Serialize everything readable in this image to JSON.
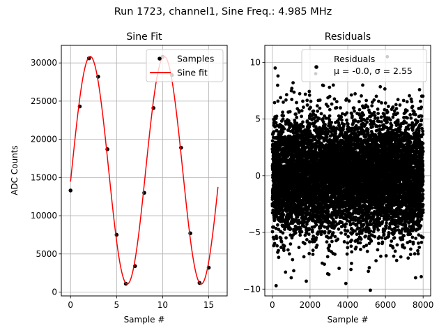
{
  "figure": {
    "suptitle": "Run 1723, channel1, Sine Freq.: 4.985 MHz"
  },
  "chart_data": [
    {
      "type": "line",
      "title": "Sine Fit",
      "xlabel": "Sample #",
      "ylabel": "ADC Counts",
      "xlim": [
        -1.0,
        17.0
      ],
      "ylim": [
        -500,
        32300
      ],
      "xticks": [
        0,
        5,
        10,
        15
      ],
      "yticks": [
        0,
        5000,
        10000,
        15000,
        20000,
        25000,
        30000
      ],
      "grid": true,
      "legend_position": "upper right",
      "legend": [
        "Samples",
        "Sine fit"
      ],
      "series": [
        {
          "name": "Samples",
          "kind": "scatter",
          "color": "#000000",
          "x": [
            0,
            1,
            2,
            3,
            4,
            5,
            6,
            7,
            8,
            9,
            10,
            11,
            12,
            13,
            14,
            15
          ],
          "y": [
            13300,
            24300,
            30600,
            28200,
            18700,
            7500,
            1100,
            3400,
            13000,
            24100,
            30800,
            28400,
            18900,
            7700,
            1200,
            3200
          ]
        },
        {
          "name": "Sine fit",
          "kind": "line",
          "color": "#ff0000",
          "model": {
            "offset": 15950,
            "amplitude": 14900,
            "period_samples": 8.03,
            "phase": -0.1,
            "x_range": [
              0,
              16
            ]
          }
        }
      ]
    },
    {
      "type": "scatter",
      "title": "Residuals",
      "xlabel": "Sample #",
      "ylabel": "",
      "xlim": [
        -400,
        8400
      ],
      "ylim": [
        -10.6,
        11.5
      ],
      "xticks": [
        0,
        2000,
        4000,
        6000,
        8000
      ],
      "yticks": [
        -10,
        -5,
        0,
        5,
        10
      ],
      "grid": true,
      "legend_position": "upper right",
      "legend": [
        "Residuals"
      ],
      "stats_text": "μ = -0.0, σ = 2.55",
      "series": [
        {
          "name": "Residuals",
          "kind": "scatter",
          "color": "#000000",
          "count": 8000,
          "mean": 0.0,
          "std": 2.55,
          "outliers": [
            [
              150,
              9.5
            ],
            [
              300,
              8.8
            ],
            [
              1100,
              8.2
            ],
            [
              2300,
              9.0
            ],
            [
              6100,
              10.5
            ],
            [
              200,
              -9.7
            ],
            [
              700,
              -8.5
            ],
            [
              1000,
              -9.0
            ],
            [
              1800,
              -9.3
            ],
            [
              3900,
              -9.5
            ],
            [
              5200,
              -10.1
            ],
            [
              7600,
              -9.0
            ],
            [
              7900,
              -8.9
            ]
          ]
        }
      ]
    }
  ]
}
